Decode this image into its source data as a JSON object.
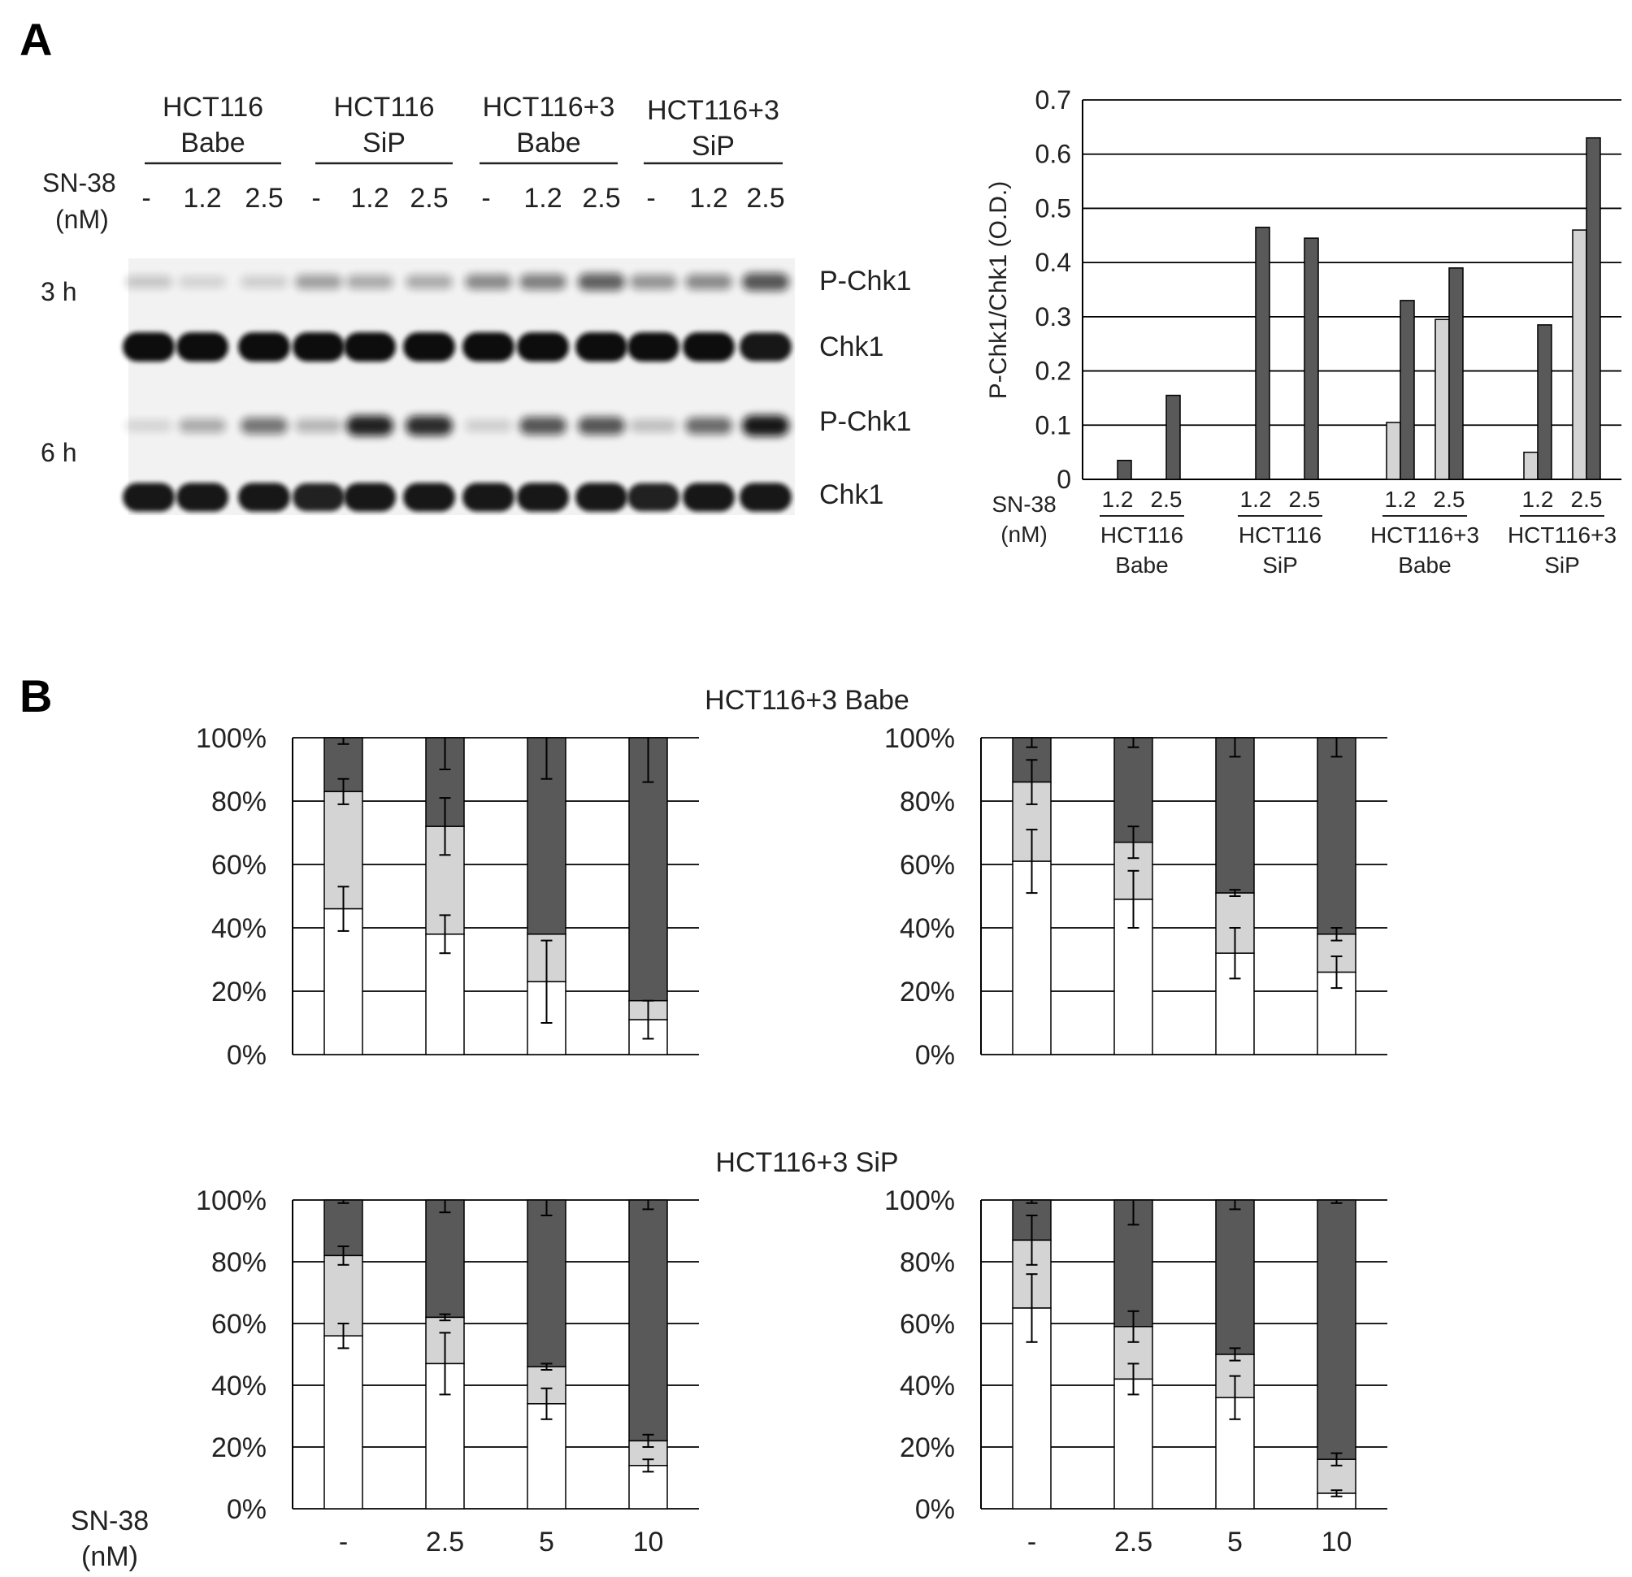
{
  "panels": {
    "a_label": "A",
    "b_label": "B"
  },
  "blot": {
    "groups": [
      {
        "line1": "HCT116",
        "line2": "Babe"
      },
      {
        "line1": "HCT116",
        "line2": "SiP"
      },
      {
        "line1": "HCT116+3",
        "line2": "Babe"
      },
      {
        "line1": "HCT116+3",
        "line2": "SiP"
      }
    ],
    "doses": [
      "-",
      "1.2",
      "2.5"
    ],
    "treatment_label": "SN-38",
    "treatment_unit": "(nM)",
    "times": [
      "3 h",
      "6 h"
    ],
    "row_labels": [
      "P-Chk1",
      "Chk1",
      "P-Chk1",
      "Chk1"
    ],
    "colors": {
      "band": "#111111",
      "background": "#f2f2f2"
    },
    "intensities": {
      "p3h": [
        0.12,
        0.06,
        0.08,
        0.3,
        0.25,
        0.25,
        0.4,
        0.45,
        0.6,
        0.35,
        0.4,
        0.65
      ],
      "chk3h": [
        1,
        1,
        1,
        1,
        1,
        1,
        1,
        1,
        1,
        1,
        1,
        0.95
      ],
      "p6h": [
        0.05,
        0.25,
        0.5,
        0.2,
        0.9,
        0.85,
        0.08,
        0.65,
        0.65,
        0.15,
        0.55,
        0.95
      ],
      "chk6h": [
        0.95,
        0.95,
        0.95,
        0.9,
        0.95,
        0.95,
        0.95,
        0.95,
        0.95,
        0.9,
        0.95,
        0.95
      ]
    }
  },
  "chart_data": [
    {
      "type": "bar",
      "ylabel": "P-Chk1/Chk1  (O.D.)",
      "ylim": [
        0,
        0.7
      ],
      "yticks": [
        "0",
        "0.1",
        "0.2",
        "0.3",
        "0.4",
        "0.5",
        "0.6",
        "0.7"
      ],
      "xlabel_prefix": "SN-38",
      "xlabel_unit": "(nM)",
      "groups": [
        {
          "line1": "HCT116",
          "line2": "Babe",
          "categories": [
            "1.2",
            "2.5"
          ],
          "light": [
            0,
            0
          ],
          "dark": [
            0.035,
            0.155
          ]
        },
        {
          "line1": "HCT116",
          "line2": "SiP",
          "categories": [
            "1.2",
            "2.5"
          ],
          "light": [
            0,
            0
          ],
          "dark": [
            0.465,
            0.445
          ]
        },
        {
          "line1": "HCT116+3",
          "line2": "Babe",
          "categories": [
            "1.2",
            "2.5"
          ],
          "light": [
            0.105,
            0.295
          ],
          "dark": [
            0.33,
            0.39
          ]
        },
        {
          "line1": "HCT116+3",
          "line2": "SiP",
          "categories": [
            "1.2",
            "2.5"
          ],
          "light": [
            0.05,
            0.46
          ],
          "dark": [
            0.285,
            0.63
          ]
        }
      ],
      "colors": {
        "light": "#d4d4d4",
        "dark": "#595959",
        "grid": "#000000"
      }
    },
    {
      "type": "bar",
      "stacked": true,
      "title": "HCT116+3  Babe",
      "yticks": [
        "0%",
        "20%",
        "40%",
        "60%",
        "80%",
        "100%"
      ],
      "panels": [
        {
          "bars": [
            {
              "white": 46,
              "light": 37,
              "err_white": 7,
              "err_light": 4,
              "err_dark": 2
            },
            {
              "white": 38,
              "light": 34,
              "err_white": 6,
              "err_light": 9,
              "err_dark": 10
            },
            {
              "white": 23,
              "light": 15,
              "err_white": 13,
              "err_light": 0,
              "err_dark": 13
            },
            {
              "white": 11,
              "light": 6,
              "err_white": 6,
              "err_light": 0,
              "err_dark": 14
            }
          ]
        },
        {
          "bars": [
            {
              "white": 61,
              "light": 25,
              "err_white": 10,
              "err_light": 7,
              "err_dark": 3
            },
            {
              "white": 49,
              "light": 18,
              "err_white": 9,
              "err_light": 5,
              "err_dark": 3
            },
            {
              "white": 32,
              "light": 19,
              "err_white": 8,
              "err_light": 1,
              "err_dark": 6
            },
            {
              "white": 26,
              "light": 12,
              "err_white": 5,
              "err_light": 2,
              "err_dark": 6
            }
          ]
        }
      ],
      "colors": {
        "white": "#ffffff",
        "light": "#d4d4d4",
        "dark": "#595959"
      }
    },
    {
      "type": "bar",
      "stacked": true,
      "title": "HCT116+3  SiP",
      "yticks": [
        "0%",
        "20%",
        "40%",
        "60%",
        "80%",
        "100%"
      ],
      "categories": [
        "-",
        "2.5",
        "5",
        "10"
      ],
      "xlabel": "SN-38",
      "xunit": "(nM)",
      "panels": [
        {
          "bars": [
            {
              "white": 56,
              "light": 26,
              "err_white": 4,
              "err_light": 3,
              "err_dark": 1
            },
            {
              "white": 47,
              "light": 15,
              "err_white": 10,
              "err_light": 1,
              "err_dark": 4
            },
            {
              "white": 34,
              "light": 12,
              "err_white": 5,
              "err_light": 1,
              "err_dark": 5
            },
            {
              "white": 14,
              "light": 8,
              "err_white": 2,
              "err_light": 2,
              "err_dark": 3
            }
          ]
        },
        {
          "bars": [
            {
              "white": 65,
              "light": 22,
              "err_white": 11,
              "err_light": 8,
              "err_dark": 1
            },
            {
              "white": 42,
              "light": 17,
              "err_white": 5,
              "err_light": 5,
              "err_dark": 8
            },
            {
              "white": 36,
              "light": 14,
              "err_white": 7,
              "err_light": 2,
              "err_dark": 3
            },
            {
              "white": 5,
              "light": 11,
              "err_white": 1,
              "err_light": 2,
              "err_dark": 1
            }
          ]
        }
      ],
      "colors": {
        "white": "#ffffff",
        "light": "#d4d4d4",
        "dark": "#595959"
      }
    }
  ]
}
